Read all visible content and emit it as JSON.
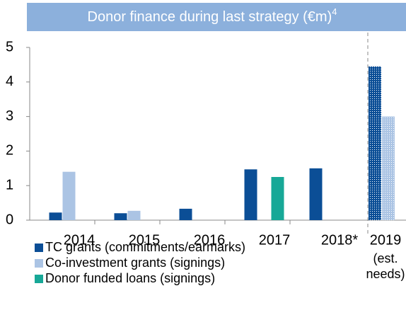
{
  "chart_data": {
    "type": "bar",
    "title": "Donor finance during last strategy (€m)",
    "title_note": "4",
    "categories": [
      "2014",
      "2015",
      "2016",
      "2017",
      "2018*",
      "2019"
    ],
    "annotation": [
      "(est.",
      "needs)"
    ],
    "series": [
      {
        "name": "TC grants (commitments/earmarks)",
        "color": "#0b4e96",
        "values": [
          0.22,
          0.2,
          0.33,
          1.47,
          1.5,
          4.45
        ]
      },
      {
        "name": "Co-investment grants (signings)",
        "color": "#abc4e4",
        "values": [
          1.4,
          0.27,
          null,
          null,
          null,
          3.0
        ]
      },
      {
        "name": "Donor funded loans (signings)",
        "color": "#17a897",
        "values": [
          null,
          null,
          null,
          1.25,
          null,
          null
        ]
      }
    ],
    "patterned_category": 5,
    "ylim": [
      0,
      5
    ],
    "yticks": [
      0,
      1,
      2,
      3,
      4,
      5
    ],
    "grid": false
  }
}
